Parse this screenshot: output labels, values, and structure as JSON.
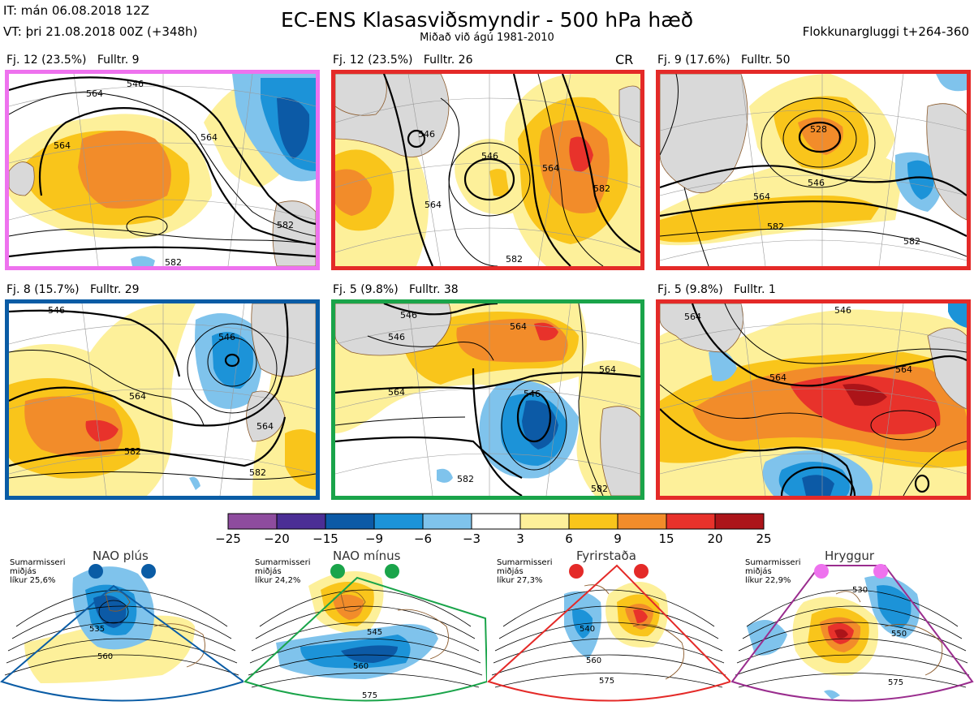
{
  "header": {
    "issue_time": "IT: mán 06.08.2018 12Z",
    "valid_time": "VT: þri 21.08.2018 00Z  (+348h)",
    "title": "EC-ENS Klasasviðsmyndir - 500 hPa hæð",
    "subtitle": "Miðað við ágú 1981-2010",
    "window": "Flokkunargluggi t+264-360"
  },
  "panels": [
    {
      "label": "Fj. 12 (23.5%)   Fulltr. 9",
      "border_color": "#ee72ee",
      "contours": [
        "546",
        "564",
        "564",
        "564",
        "582",
        "582"
      ]
    },
    {
      "label": "Fj. 12 (23.5%)   Fulltr. 26",
      "border_color": "#e42a28",
      "tag": "CR",
      "contours": [
        "546",
        "546",
        "564",
        "564",
        "582",
        "582"
      ]
    },
    {
      "label": "Fj. 9 (17.6%)   Fulltr. 50",
      "border_color": "#e42a28",
      "contours": [
        "528",
        "546",
        "564",
        "582",
        "582"
      ]
    },
    {
      "label": "Fj. 8 (15.7%)   Fulltr. 29",
      "border_color": "#0a5ca5",
      "contours": [
        "546",
        "546",
        "564",
        "564",
        "582",
        "582"
      ]
    },
    {
      "label": "Fj. 5 (9.8%)   Fulltr. 38",
      "border_color": "#1aa44a",
      "contours": [
        "546",
        "546",
        "546",
        "564",
        "564",
        "564",
        "582",
        "582"
      ]
    },
    {
      "label": "Fj. 5 (9.8%)   Fulltr. 1",
      "border_color": "#e42a28",
      "contours": [
        "546",
        "564",
        "564",
        "564"
      ]
    }
  ],
  "colorbar": {
    "ticks": [
      "−25",
      "−20",
      "−15",
      "−9",
      "−6",
      "−3",
      "3",
      "6",
      "9",
      "15",
      "20",
      "25"
    ],
    "colors": [
      "#8e4c9e",
      "#4b2e95",
      "#0c5aa6",
      "#1c93d8",
      "#7fc3ec",
      "#ffffff",
      "#fdf09a",
      "#f9c51b",
      "#f28c2a",
      "#e8322b",
      "#ac1419"
    ]
  },
  "regimes": [
    {
      "title": "NAO plús",
      "info": "Sumarmisseri\nmiðjás\nlíkur 25,6%",
      "color": "#0a5ca5",
      "contours": [
        "535",
        "560"
      ]
    },
    {
      "title": "NAO mínus",
      "info": "Sumarmisseri\nmiðjás\nlíkur 24,2%",
      "color": "#1aa44a",
      "contours": [
        "545",
        "560",
        "575"
      ]
    },
    {
      "title": "Fyrirstaða",
      "info": "Sumarmisseri\nmiðjás\nlíkur 27,3%",
      "color": "#e42a28",
      "contours": [
        "540",
        "560",
        "575"
      ]
    },
    {
      "title": "Hryggur",
      "info": "Sumarmisseri\nmiðjás\nlíkur 22,9%",
      "color": "#9a2d8e",
      "dot_color": "#ee72ee",
      "contours": [
        "530",
        "550",
        "575"
      ]
    }
  ]
}
